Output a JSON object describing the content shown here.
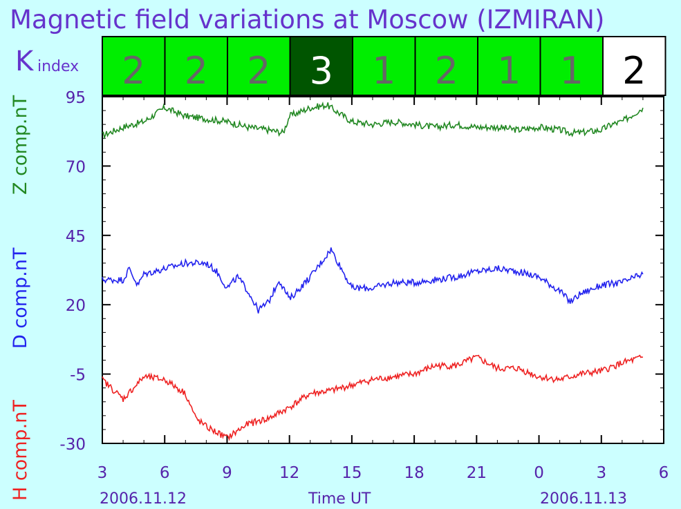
{
  "chart_data": {
    "type": "line",
    "title": "Magnetic field variations at Moscow (IZMIRAN)",
    "k_index": {
      "label_main": "K",
      "label_sub": "index",
      "values": [
        2,
        2,
        2,
        3,
        1,
        2,
        1,
        1,
        2
      ],
      "colors": {
        "normal": "#00ee00",
        "elevated": "#005500",
        "pending": "#ffffff",
        "border": "#000000"
      }
    },
    "y_axis": {
      "ticks": [
        "95",
        "70",
        "45",
        "20",
        "-5",
        "-30"
      ],
      "ylim": [
        -30,
        95
      ]
    },
    "x_axis": {
      "label": "Time UT",
      "ticks": [
        "3",
        "6",
        "9",
        "12",
        "15",
        "18",
        "21",
        "0",
        "3",
        "6"
      ],
      "date_left": "2006.11.12",
      "date_right": "2006.11.13",
      "x_start_hours": 3,
      "x_end_hours": 30
    },
    "ylabels": {
      "z": {
        "text": "Z comp.nT",
        "color": "#228822"
      },
      "d": {
        "text": "D comp.nT",
        "color": "#2222ee"
      },
      "h": {
        "text": "H comp.nT",
        "color": "#ee2222"
      }
    },
    "series": [
      {
        "name": "Z comp.nT",
        "color": "#228822",
        "x": [
          3,
          4,
          5,
          6,
          7,
          8,
          9,
          10,
          11,
          11.7,
          12,
          13,
          13.8,
          15,
          16,
          17,
          18,
          19,
          20,
          21,
          22,
          23,
          24,
          25,
          25.5,
          26,
          27,
          27.5,
          28,
          29
        ],
        "values": [
          81,
          84,
          86,
          91,
          88,
          87,
          86,
          84,
          83,
          82,
          88,
          91,
          92,
          86,
          85,
          86,
          85,
          84,
          85,
          84,
          84,
          83,
          84,
          83,
          82,
          82,
          83,
          85,
          86,
          91
        ]
      },
      {
        "name": "D comp.nT",
        "color": "#2222ee",
        "x": [
          3,
          4,
          4.3,
          4.7,
          5,
          6,
          7,
          8,
          8.5,
          9,
          9.5,
          10,
          10.5,
          11,
          11.5,
          12,
          13,
          13.5,
          14,
          15,
          16,
          17,
          18,
          19,
          20,
          21,
          22,
          23,
          24,
          25,
          25.5,
          26,
          27,
          28,
          29
        ],
        "values": [
          29,
          29,
          33,
          27,
          31,
          33,
          35,
          35,
          32,
          26,
          30,
          25,
          18,
          21,
          29,
          22,
          30,
          35,
          40,
          26,
          26,
          28,
          28,
          29,
          30,
          32,
          33,
          32,
          30,
          25,
          21,
          24,
          27,
          28,
          31
        ]
      },
      {
        "name": "H comp.nT",
        "color": "#ee2222",
        "x": [
          3,
          4,
          5,
          6,
          7,
          7.5,
          8,
          9,
          10,
          11,
          12,
          13,
          14,
          15,
          16,
          17,
          18,
          19,
          20,
          21,
          22,
          23,
          24,
          25,
          26,
          27,
          28,
          29
        ],
        "values": [
          -7,
          -14,
          -6,
          -7,
          -12,
          -21,
          -24,
          -28,
          -23,
          -21,
          -17,
          -12,
          -11,
          -9,
          -7,
          -6,
          -5,
          -2,
          -2,
          1,
          -3,
          -3,
          -6,
          -7,
          -5,
          -4,
          -1,
          1
        ]
      }
    ]
  }
}
